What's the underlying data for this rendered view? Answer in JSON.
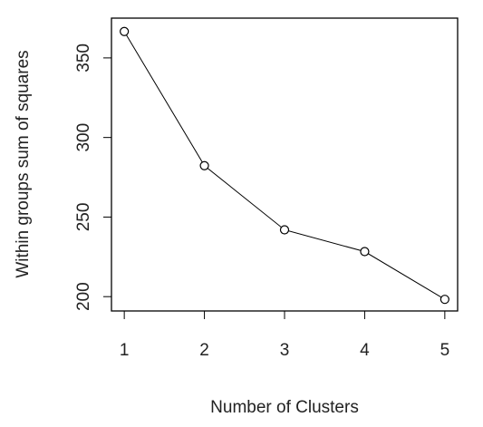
{
  "chart_data": {
    "type": "line",
    "x_label": "Number of Clusters",
    "y_label": "Within groups sum of squares",
    "x": [
      1,
      2,
      3,
      4,
      5
    ],
    "series": [
      {
        "color": "#000000",
        "values": [
          366.6,
          282.3,
          242,
          228.3,
          198.3
        ]
      }
    ],
    "xlim": [
      0.84,
      5.16
    ],
    "xticks": [
      1,
      2,
      3,
      4,
      5
    ],
    "ylim": [
      191,
      375
    ],
    "yticks": [
      200,
      250,
      300,
      350
    ],
    "grid": false
  }
}
